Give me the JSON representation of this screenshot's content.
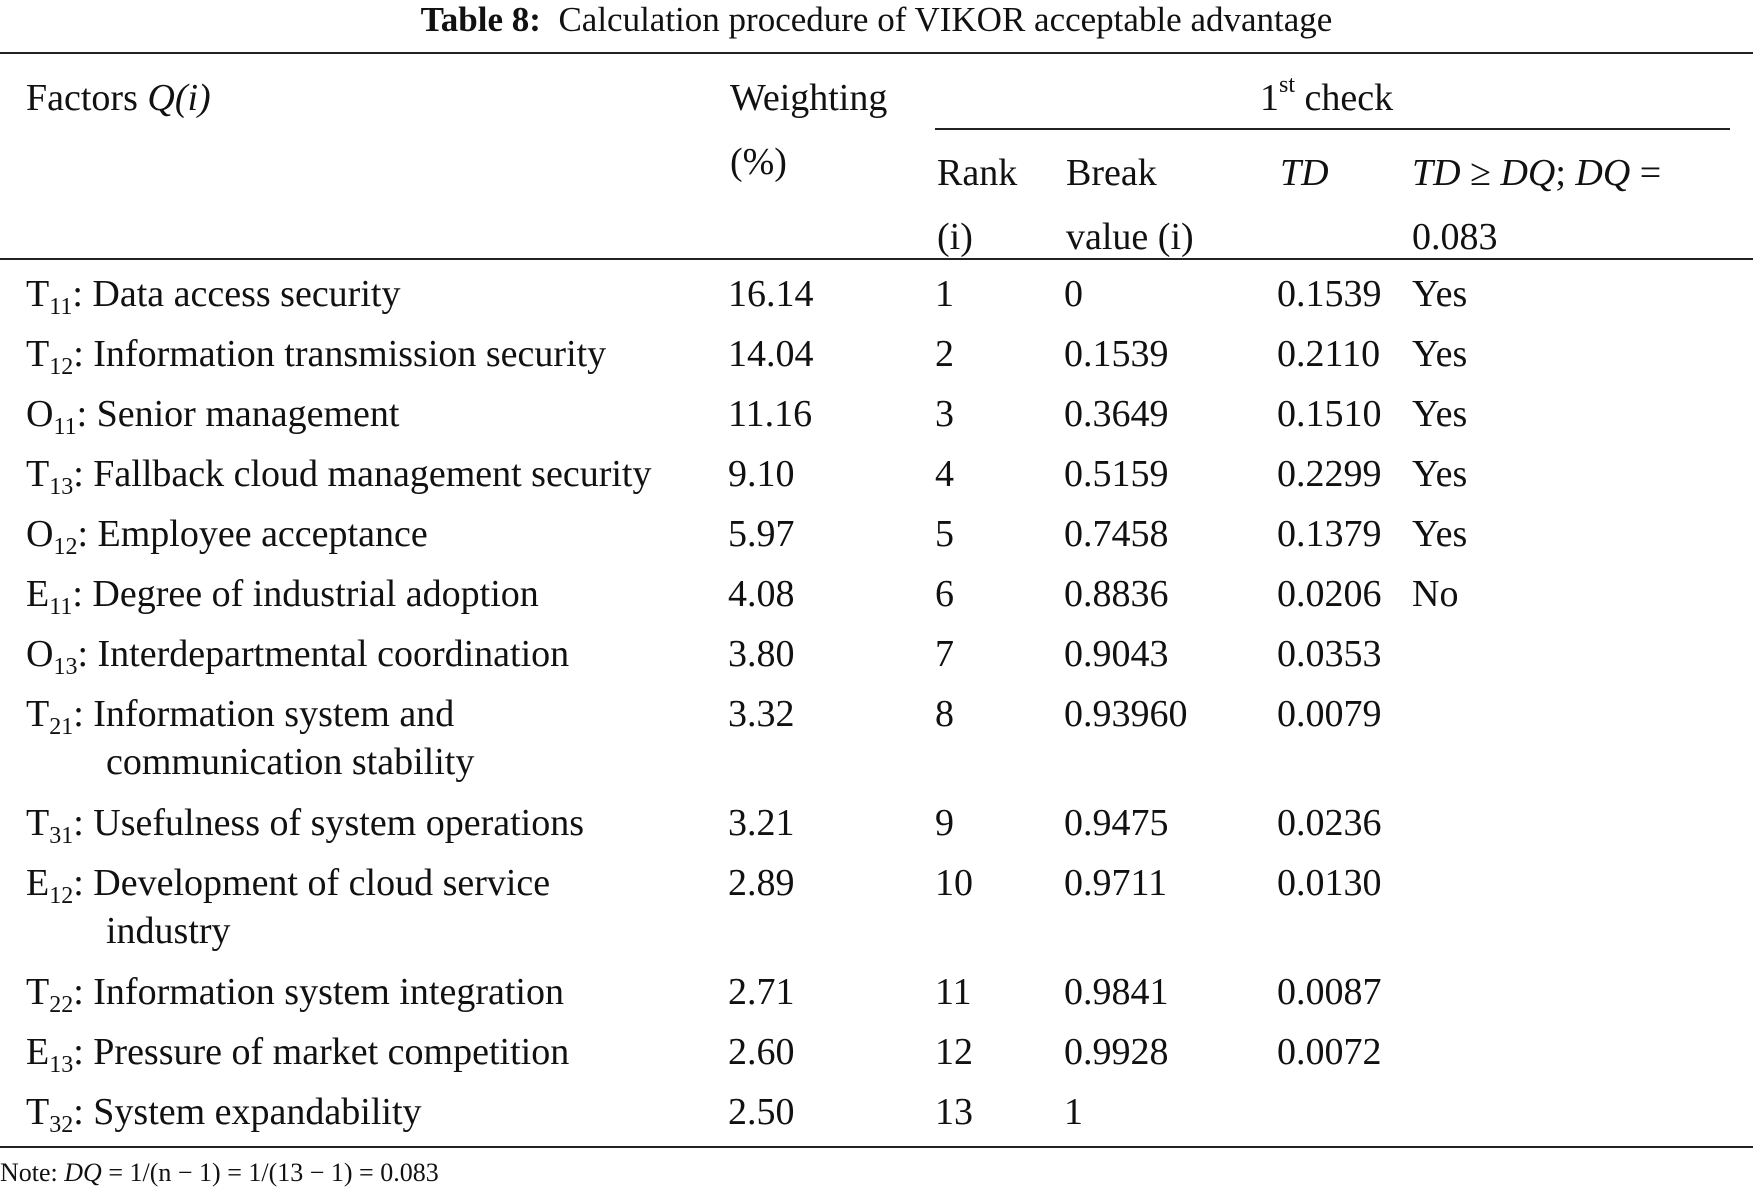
{
  "caption": {
    "label": "Table 8:",
    "text": "Calculation procedure of VIKOR acceptable advantage"
  },
  "headers": {
    "factors": "Factors",
    "factors_symbol": "Q(i)",
    "weighting_line1": "Weighting",
    "weighting_line2": "(%)",
    "check_label": "check",
    "check_number": "1",
    "check_suffix": "st",
    "rank_line1": "Rank",
    "rank_line2": "(i)",
    "break_line1": "Break",
    "break_line2": "value (i)",
    "td": "TD",
    "cond_td": "TD",
    "cond_ge": " ≥ ",
    "cond_dq": "DQ",
    "cond_sep": "; ",
    "cond_dq2": "DQ",
    "cond_eq": " =",
    "cond_value": "0.083"
  },
  "rows": [
    {
      "prefix": "T",
      "sub": "11",
      "factor": ": Data access security",
      "factor2": "",
      "weight": "16.14",
      "rank": "1",
      "break": "0",
      "td": "0.1539",
      "result": "Yes"
    },
    {
      "prefix": "T",
      "sub": "12",
      "factor": ": Information transmission security",
      "factor2": "",
      "weight": "14.04",
      "rank": "2",
      "break": "0.1539",
      "td": "0.2110",
      "result": "Yes"
    },
    {
      "prefix": "O",
      "sub": "11",
      "factor": ": Senior management",
      "factor2": "",
      "weight": "11.16",
      "rank": "3",
      "break": "0.3649",
      "td": "0.1510",
      "result": "Yes"
    },
    {
      "prefix": "T",
      "sub": "13",
      "factor": ": Fallback cloud management security",
      "factor2": "",
      "weight": "9.10",
      "rank": "4",
      "break": "0.5159",
      "td": "0.2299",
      "result": "Yes"
    },
    {
      "prefix": "O",
      "sub": "12",
      "factor": ": Employee acceptance",
      "factor2": "",
      "weight": "5.97",
      "rank": "5",
      "break": "0.7458",
      "td": "0.1379",
      "result": "Yes"
    },
    {
      "prefix": "E",
      "sub": "11",
      "factor": ": Degree of industrial adoption",
      "factor2": "",
      "weight": "4.08",
      "rank": "6",
      "break": "0.8836",
      "td": "0.0206",
      "result": "No"
    },
    {
      "prefix": "O",
      "sub": "13",
      "factor": ": Interdepartmental coordination",
      "factor2": "",
      "weight": "3.80",
      "rank": "7",
      "break": "0.9043",
      "td": "0.0353",
      "result": ""
    },
    {
      "prefix": "T",
      "sub": "21",
      "factor": ": Information system and",
      "factor2": "communication stability",
      "weight": "3.32",
      "rank": "8",
      "break": "0.93960",
      "td": "0.0079",
      "result": ""
    },
    {
      "prefix": "T",
      "sub": "31",
      "factor": ": Usefulness of system operations",
      "factor2": "",
      "weight": "3.21",
      "rank": "9",
      "break": "0.9475",
      "td": "0.0236",
      "result": ""
    },
    {
      "prefix": "E",
      "sub": "12",
      "factor": ": Development of cloud service",
      "factor2": "industry",
      "weight": "2.89",
      "rank": "10",
      "break": "0.9711",
      "td": "0.0130",
      "result": ""
    },
    {
      "prefix": "T",
      "sub": "22",
      "factor": ": Information system integration",
      "factor2": "",
      "weight": "2.71",
      "rank": "11",
      "break": "0.9841",
      "td": "0.0087",
      "result": ""
    },
    {
      "prefix": "E",
      "sub": "13",
      "factor": ": Pressure of market competition",
      "factor2": "",
      "weight": "2.60",
      "rank": "12",
      "break": "0.9928",
      "td": "0.0072",
      "result": ""
    },
    {
      "prefix": "T",
      "sub": "32",
      "factor": ": System expandability",
      "factor2": "",
      "weight": "2.50",
      "rank": "13",
      "break": "1",
      "td": "",
      "result": ""
    }
  ],
  "note": {
    "label": "Note: ",
    "symbol": "DQ",
    "formula": " = 1/(n − 1) = 1/(13 − 1) = 0.083"
  }
}
